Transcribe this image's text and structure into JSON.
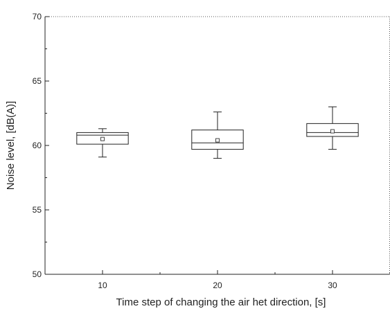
{
  "chart_data": {
    "type": "box",
    "xlabel": "Time step of changing the air het direction, [s]",
    "ylabel": "Noise level, [dB(A)]",
    "ylim": [
      50,
      70
    ],
    "yticks": [
      50,
      55,
      60,
      65,
      70
    ],
    "xlim": [
      5,
      35
    ],
    "xticks": [
      10,
      20,
      30
    ],
    "grid": false,
    "boxes": [
      {
        "x": 10,
        "whisker_low": 59.1,
        "q1": 60.1,
        "median": 60.8,
        "q3": 61.0,
        "whisker_high": 61.3,
        "mean": 60.5
      },
      {
        "x": 20,
        "whisker_low": 59.0,
        "q1": 59.7,
        "median": 60.2,
        "q3": 61.2,
        "whisker_high": 62.6,
        "mean": 60.4
      },
      {
        "x": 30,
        "whisker_low": 59.7,
        "q1": 60.7,
        "median": 61.0,
        "q3": 61.7,
        "whisker_high": 63.0,
        "mean": 61.1
      }
    ]
  }
}
